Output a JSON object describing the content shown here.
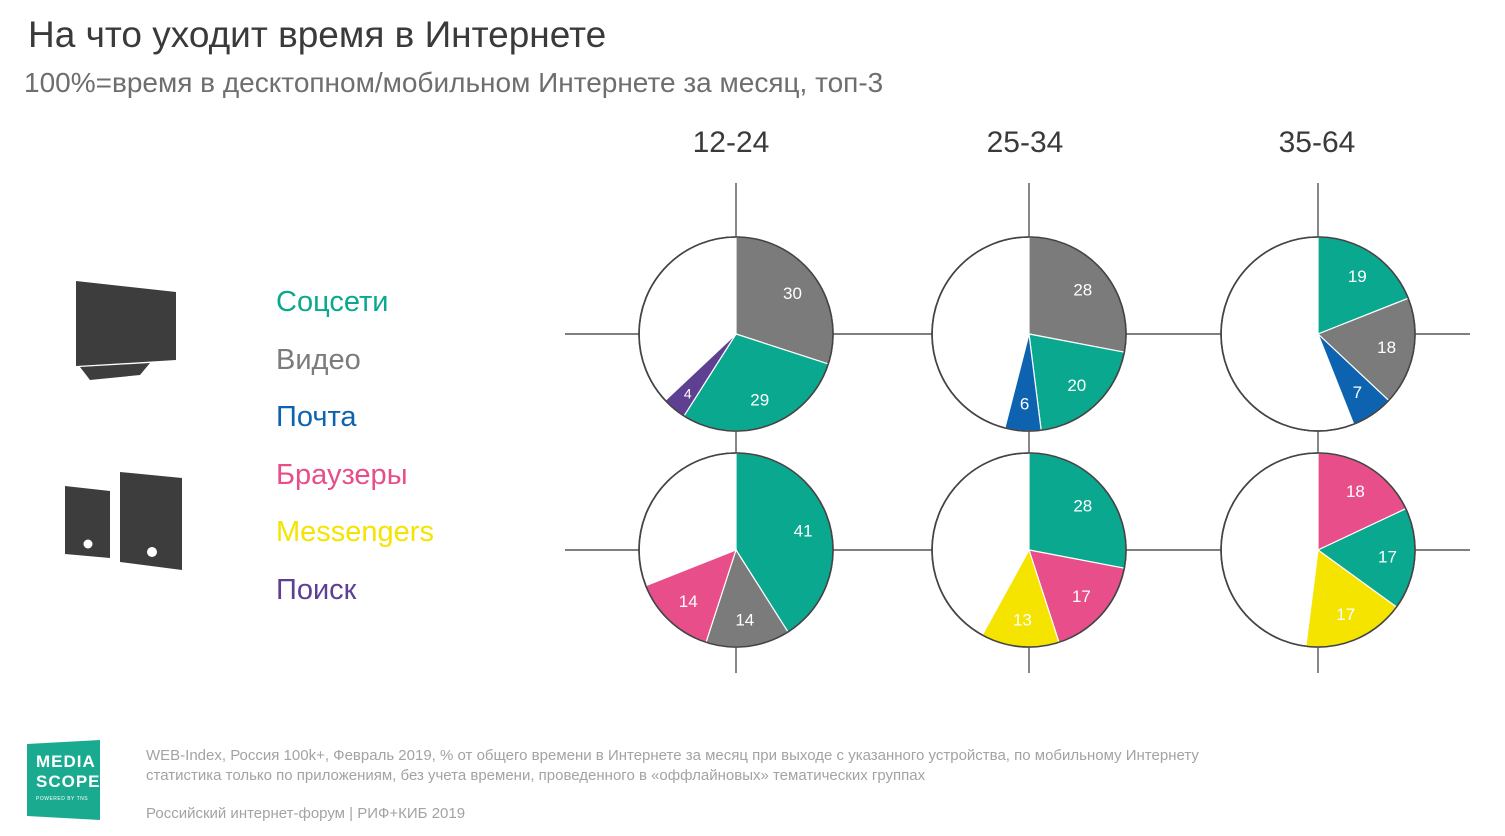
{
  "title": "На что уходит время в Интернете",
  "subtitle": "100%=время в десктопном/мобильном Интернете за месяц, топ-3",
  "icons": {
    "desktop": "desktop-computer-icon",
    "mobile": "tablet-and-phone-icon"
  },
  "legend": [
    {
      "label": "Соцсети",
      "color": "#0aa88f"
    },
    {
      "label": "Видео",
      "color": "#7b7b7b"
    },
    {
      "label": "Почта",
      "color": "#0d63b0"
    },
    {
      "label": "Браузеры",
      "color": "#e74e8a"
    },
    {
      "label": "Messengers",
      "color": "#f5e400"
    },
    {
      "label": "Поиск",
      "color": "#5e3f92"
    }
  ],
  "footnote_line1": "WEB-Index, Россия 100k+, Февраль 2019, % от общего времени в Интернете за месяц при выходе с указанного устройства, по мобильному Интернету",
  "footnote_line2": "статистика только по приложениям, без учета времени, проведенного в «оффлайновых» тематических группах",
  "footer": "Российский интернет-форум | РИФ+КИБ 2019",
  "logo": {
    "top": "MEDIA",
    "bottom": "SCOPE",
    "tag": "POWERED BY TNS"
  },
  "chart_data": {
    "type": "pie",
    "unit": "%",
    "rows": [
      "desktop",
      "mobile"
    ],
    "groups": [
      "12-24",
      "25-34",
      "35-64"
    ],
    "series_colors": {
      "Соцсети": "#0aa88f",
      "Видео": "#7b7b7b",
      "Почта": "#0d63b0",
      "Браузеры": "#e74e8a",
      "Messengers": "#f5e400",
      "Поиск": "#5e3f92"
    },
    "pies": [
      {
        "row": "desktop",
        "group": "12-24",
        "slices": [
          {
            "series": "Видео",
            "value": 30
          },
          {
            "series": "Соцсети",
            "value": 29
          },
          {
            "series": "Поиск",
            "value": 4
          }
        ]
      },
      {
        "row": "desktop",
        "group": "25-34",
        "slices": [
          {
            "series": "Видео",
            "value": 28
          },
          {
            "series": "Соцсети",
            "value": 20
          },
          {
            "series": "Почта",
            "value": 6
          }
        ]
      },
      {
        "row": "desktop",
        "group": "35-64",
        "slices": [
          {
            "series": "Соцсети",
            "value": 19
          },
          {
            "series": "Видео",
            "value": 18
          },
          {
            "series": "Почта",
            "value": 7
          }
        ]
      },
      {
        "row": "mobile",
        "group": "12-24",
        "slices": [
          {
            "series": "Соцсети",
            "value": 41
          },
          {
            "series": "Видео",
            "value": 14
          },
          {
            "series": "Браузеры",
            "value": 14
          }
        ]
      },
      {
        "row": "mobile",
        "group": "25-34",
        "slices": [
          {
            "series": "Соцсети",
            "value": 28
          },
          {
            "series": "Браузеры",
            "value": 17
          },
          {
            "series": "Messengers",
            "value": 13
          }
        ]
      },
      {
        "row": "mobile",
        "group": "35-64",
        "slices": [
          {
            "series": "Браузеры",
            "value": 18
          },
          {
            "series": "Соцсети",
            "value": 17
          },
          {
            "series": "Messengers",
            "value": 17
          }
        ]
      }
    ]
  }
}
